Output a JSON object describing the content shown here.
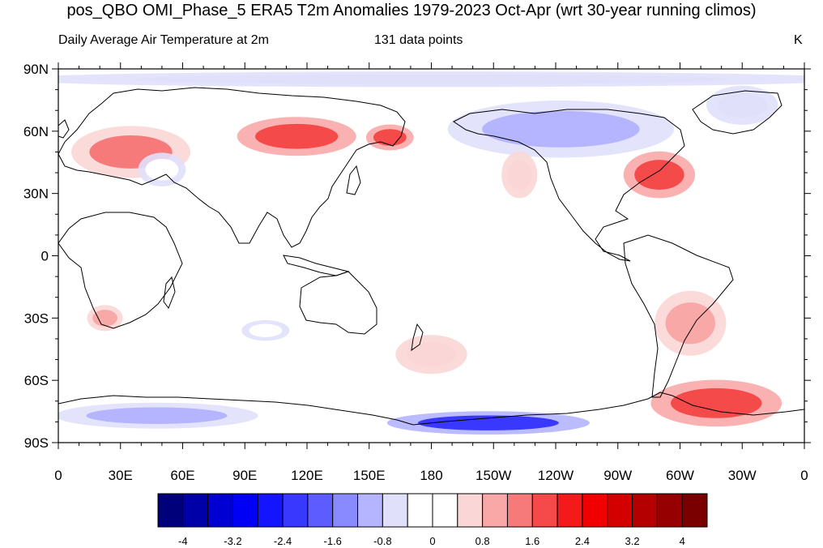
{
  "title": "pos_QBO OMI_Phase_5 ERA5 T2m Anomalies 1979-2023 Oct-Apr (wrt 30-year running climos)",
  "subtitle_left": "Daily Average Air Temperature at 2m",
  "subtitle_center": "131 data points",
  "units": "K",
  "map": {
    "projection": "cylindrical-equidistant",
    "lon_range": [
      0,
      360
    ],
    "lat_range": [
      -90,
      90
    ],
    "lat_ticks": [
      {
        "lat": 90,
        "label": "90N"
      },
      {
        "lat": 60,
        "label": "60N"
      },
      {
        "lat": 30,
        "label": "30N"
      },
      {
        "lat": 0,
        "label": "0"
      },
      {
        "lat": -30,
        "label": "30S"
      },
      {
        "lat": -60,
        "label": "60S"
      },
      {
        "lat": -90,
        "label": "90S"
      }
    ],
    "lon_ticks": [
      {
        "lon": 0,
        "label": "0"
      },
      {
        "lon": 30,
        "label": "30E"
      },
      {
        "lon": 60,
        "label": "60E"
      },
      {
        "lon": 90,
        "label": "90E"
      },
      {
        "lon": 120,
        "label": "120E"
      },
      {
        "lon": 150,
        "label": "150E"
      },
      {
        "lon": 180,
        "label": "180"
      },
      {
        "lon": 210,
        "label": "150W"
      },
      {
        "lon": 240,
        "label": "120W"
      },
      {
        "lon": 270,
        "label": "90W"
      },
      {
        "lon": 300,
        "label": "60W"
      },
      {
        "lon": 330,
        "label": "30W"
      },
      {
        "lon": 360,
        "label": "0"
      }
    ],
    "anomaly_regions": [
      {
        "name": "arctic-cold-band",
        "lon": [
          0,
          360
        ],
        "lat": [
          82,
          88
        ],
        "value": -0.8
      },
      {
        "name": "europe-warm",
        "lon": [
          10,
          60
        ],
        "lat": [
          40,
          60
        ],
        "value": 1.2
      },
      {
        "name": "siberia-warm",
        "lon": [
          90,
          140
        ],
        "lat": [
          50,
          65
        ],
        "value": 1.6
      },
      {
        "name": "kamchatka-warm",
        "lon": [
          150,
          170
        ],
        "lat": [
          52,
          62
        ],
        "value": 1.6
      },
      {
        "name": "north-america-cold",
        "lon": [
          195,
          290
        ],
        "lat": [
          50,
          72
        ],
        "value": -1.2
      },
      {
        "name": "eastern-us-warm",
        "lon": [
          275,
          305
        ],
        "lat": [
          30,
          48
        ],
        "value": 1.6
      },
      {
        "name": "greenland-cold",
        "lon": [
          315,
          345
        ],
        "lat": [
          65,
          80
        ],
        "value": -0.8
      },
      {
        "name": "central-asia-cold",
        "lon": [
          40,
          60
        ],
        "lat": [
          35,
          48
        ],
        "value": -0.4
      },
      {
        "name": "south-america-warm",
        "lon": [
          290,
          320
        ],
        "lat": [
          -45,
          -20
        ],
        "value": 0.8
      },
      {
        "name": "southern-ocean-warm",
        "lon": [
          290,
          345
        ],
        "lat": [
          -80,
          -62
        ],
        "value": 1.6
      },
      {
        "name": "east-antarctica-cold",
        "lon": [
          5,
          90
        ],
        "lat": [
          -82,
          -72
        ],
        "value": -1.2
      },
      {
        "name": "ross-sea-cold",
        "lon": [
          165,
          250
        ],
        "lat": [
          -85,
          -76
        ],
        "value": -2.4
      },
      {
        "name": "new-zealand-warm",
        "lon": [
          165,
          195
        ],
        "lat": [
          -55,
          -40
        ],
        "value": 0.6
      },
      {
        "name": "southern-africa-warm",
        "lon": [
          15,
          30
        ],
        "lat": [
          -35,
          -25
        ],
        "value": 0.8
      },
      {
        "name": "north-pacific-warm",
        "lon": [
          215,
          230
        ],
        "lat": [
          30,
          48
        ],
        "value": 0.4
      },
      {
        "name": "southern-indian-cold",
        "lon": [
          90,
          110
        ],
        "lat": [
          -40,
          -32
        ],
        "value": -0.4
      }
    ]
  },
  "colorbar": {
    "colors": [
      "#00007a",
      "#0000a8",
      "#0000d2",
      "#0000f4",
      "#1414ff",
      "#3838ff",
      "#5c5cff",
      "#8a8aff",
      "#b4b4ff",
      "#e0e0fb",
      "#ffffff",
      "#ffffff",
      "#fbd6d6",
      "#f9a8a8",
      "#f77a7a",
      "#f54a4a",
      "#f51a1a",
      "#f00000",
      "#d40000",
      "#b40000",
      "#960000",
      "#7a0000"
    ],
    "labels": [
      {
        "value": -4,
        "text": "-4"
      },
      {
        "value": -3.2,
        "text": "-3.2"
      },
      {
        "value": -2.4,
        "text": "-2.4"
      },
      {
        "value": -1.6,
        "text": "-1.6"
      },
      {
        "value": -0.8,
        "text": "-0.8"
      },
      {
        "value": 0,
        "text": "0"
      },
      {
        "value": 0.8,
        "text": "0.8"
      },
      {
        "value": 1.6,
        "text": "1.6"
      },
      {
        "value": 2.4,
        "text": "2.4"
      },
      {
        "value": 3.2,
        "text": "3.2"
      },
      {
        "value": 4,
        "text": "4"
      }
    ]
  }
}
